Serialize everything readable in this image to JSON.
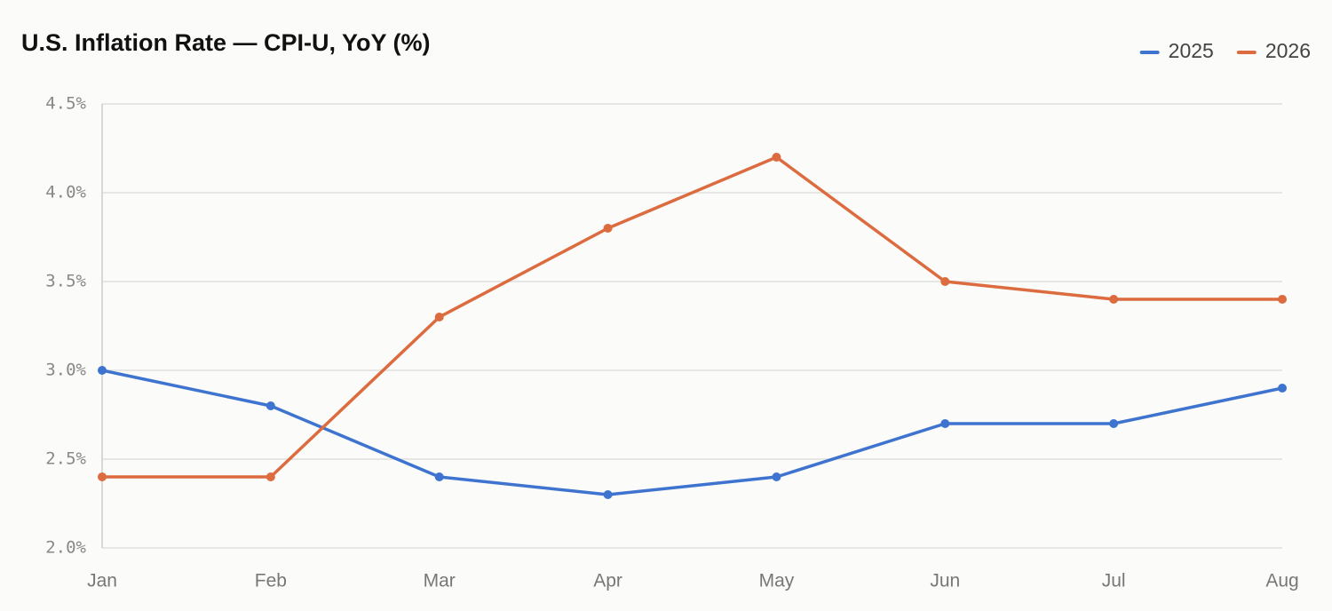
{
  "chart_data": {
    "type": "line",
    "title": "U.S. Inflation Rate — CPI-U, YoY (%)",
    "categories": [
      "Jan",
      "Feb",
      "Mar",
      "Apr",
      "May",
      "Jun",
      "Jul",
      "Aug"
    ],
    "series": [
      {
        "name": "2025",
        "color": "#3e74d0",
        "values": [
          3.0,
          2.8,
          2.4,
          2.3,
          2.4,
          2.7,
          2.7,
          2.9
        ]
      },
      {
        "name": "2026",
        "color": "#dc6b3f",
        "values": [
          2.4,
          2.4,
          3.3,
          3.8,
          4.2,
          3.5,
          3.4,
          3.4
        ]
      }
    ],
    "ylim": [
      2.0,
      4.5
    ],
    "yticks": [
      {
        "value": 2.0,
        "label": "2.0%"
      },
      {
        "value": 2.5,
        "label": "2.5%"
      },
      {
        "value": 3.0,
        "label": "3.0%"
      },
      {
        "value": 3.5,
        "label": "3.5%"
      },
      {
        "value": 4.0,
        "label": "4.0%"
      },
      {
        "value": 4.5,
        "label": "4.5%"
      }
    ],
    "grid": true,
    "legend": "top-right"
  }
}
